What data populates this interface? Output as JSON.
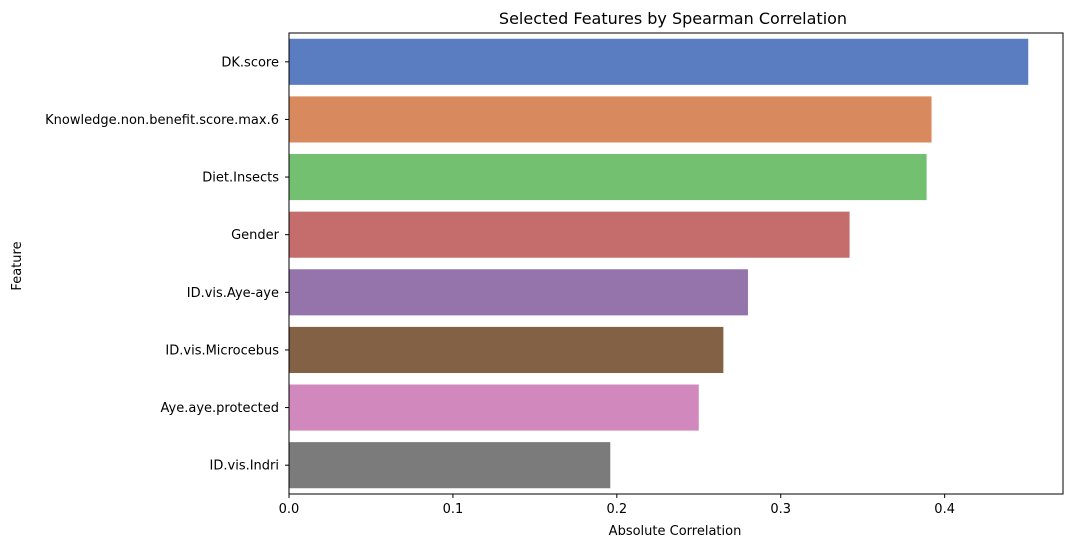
{
  "chart_data": {
    "type": "bar",
    "orientation": "horizontal",
    "title": "Selected Features by Spearman Correlation",
    "xlabel": "Absolute Correlation",
    "ylabel": "Feature",
    "xlim": [
      0,
      0.4722
    ],
    "xticks": [
      0.0,
      0.1,
      0.2,
      0.3,
      0.4
    ],
    "xtick_labels": [
      "0.0",
      "0.1",
      "0.2",
      "0.3",
      "0.4"
    ],
    "grid": false,
    "categories": [
      "DK.score",
      "Knowledge.non.benefit.score.max.6",
      "Diet.Insects",
      "Gender",
      "ID.vis.Aye-aye",
      "ID.vis.Microcebus",
      "Aye.aye.protected",
      "ID.vis.Indri"
    ],
    "values": [
      0.451,
      0.392,
      0.389,
      0.342,
      0.28,
      0.265,
      0.25,
      0.196
    ],
    "colors": [
      "#5a7dc1",
      "#d9895e",
      "#74c071",
      "#c46d6c",
      "#9474ab",
      "#826144",
      "#d189bd",
      "#7b7b7b"
    ]
  }
}
